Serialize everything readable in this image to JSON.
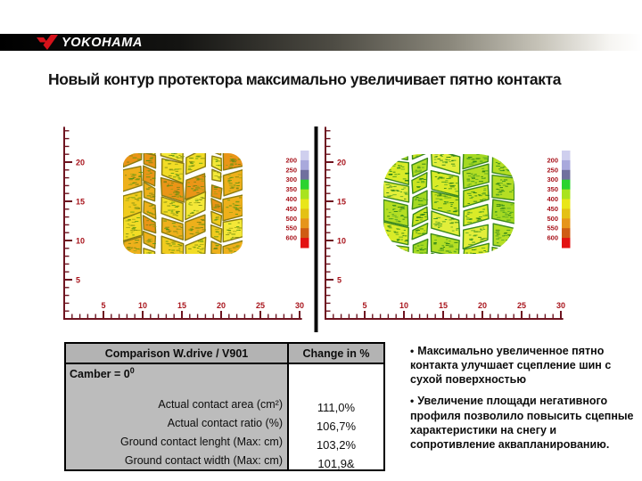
{
  "slide": {
    "brand": "YOKOHAMA",
    "title": "Новый контур протектора максимально увеличивает пятно контакта",
    "brand_red": "#d5121a"
  },
  "plots": {
    "axis_color": "#6e1420",
    "tick_label_color": "#a8141c",
    "x_ticks": [
      "5",
      "10",
      "15",
      "20",
      "25",
      "30"
    ],
    "y_ticks": [
      "5",
      "10",
      "15",
      "20"
    ],
    "legend": {
      "values": [
        "200",
        "250",
        "300",
        "350",
        "400",
        "450",
        "500",
        "550",
        "600"
      ],
      "colors": [
        "#cfcfee",
        "#a9a9dc",
        "#70709e",
        "#2bd32e",
        "#a9e31f",
        "#e9e619",
        "#e4c115",
        "#e6951b",
        "#cf5c14",
        "#e31111"
      ]
    },
    "left_patch": {
      "name": "v901-contact-patch",
      "palette": [
        "#f2dc26",
        "#f0cb1e",
        "#eeb01b",
        "#ea9517",
        "#f4e838"
      ],
      "speckles": [
        "#718210",
        "#4c940f",
        "#9aa214"
      ],
      "outline": "#8a7c10"
    },
    "right_patch": {
      "name": "wdrive-contact-patch",
      "palette": [
        "#d9eb28",
        "#c9e420",
        "#b4de24",
        "#a4d922",
        "#e2ee3a"
      ],
      "speckles": [
        "#2f8f1e",
        "#51a224",
        "#177013"
      ],
      "outline": "#3c8a1c"
    }
  },
  "table": {
    "header": {
      "col1": "Comparison W.drive / V901",
      "col2": "Change in %"
    },
    "camber": {
      "text": "Camber = 0",
      "sup": "0"
    },
    "rows": [
      {
        "label": "Actual contact area (cm²)",
        "value": "111,0%"
      },
      {
        "label": "Actual contact ratio (%)",
        "value": "106,7%"
      },
      {
        "label": "Ground contact lenght (Max: cm)",
        "value": "103,2%"
      },
      {
        "label": "Ground contact width (Max: cm)",
        "value": "101,9&"
      }
    ]
  },
  "notes": {
    "bullets": [
      "Максимально увеличенное пятно контакта улучшает сцепление шин с сухой поверхностью",
      "Увеличение площади негативного профиля позволило повысить сцепные характеристики на снегу и сопротивление аквапланированию."
    ]
  }
}
